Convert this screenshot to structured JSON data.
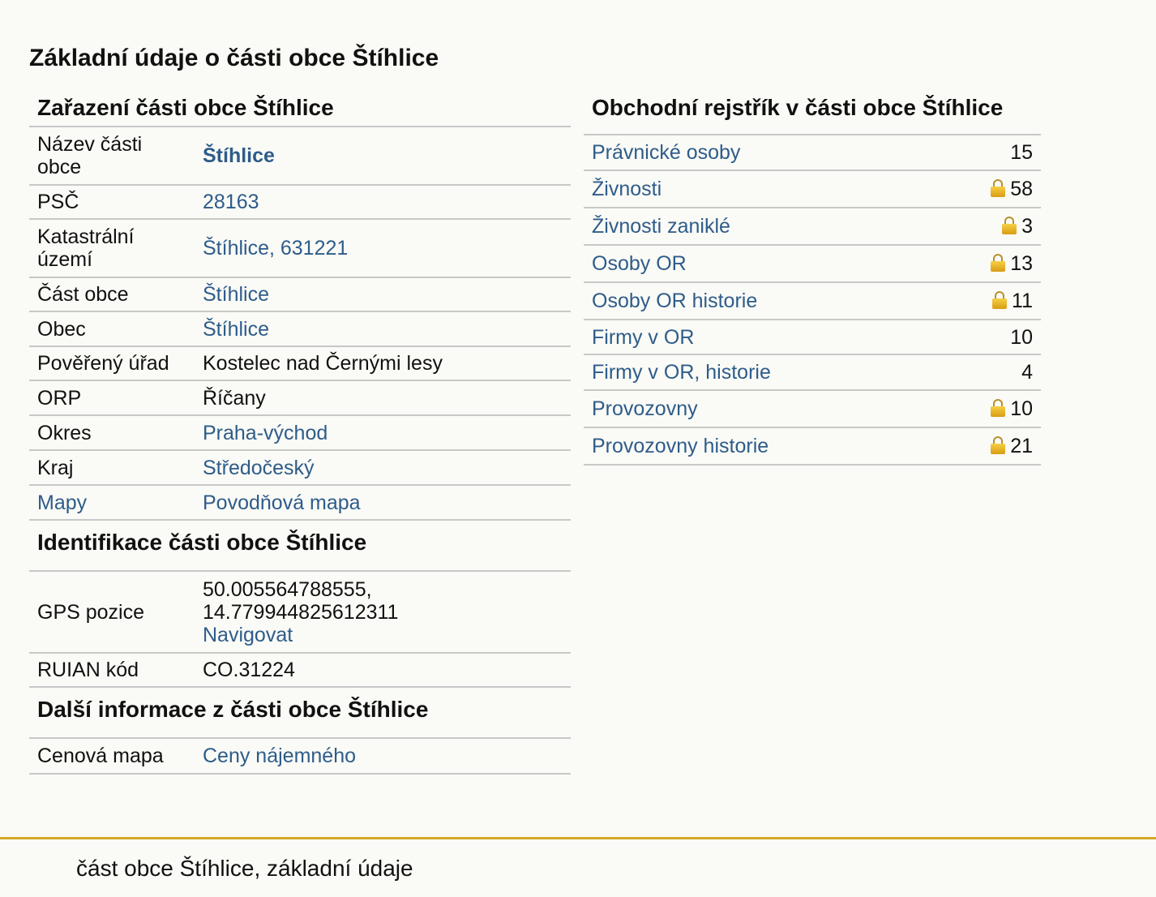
{
  "page_title": "Základní údaje o části obce Štíhlice",
  "zarazeni": {
    "title": "Zařazení části obce Štíhlice",
    "rows": [
      {
        "key": "Název části obce",
        "value": "Štíhlice"
      },
      {
        "key": "PSČ",
        "value": "28163"
      },
      {
        "key": "Katastrální území",
        "value": "Štíhlice, 631221"
      },
      {
        "key": "Část obce",
        "value": "Štíhlice"
      },
      {
        "key": "Obec",
        "value": "Štíhlice"
      },
      {
        "key": "Pověřený úřad",
        "value": "Kostelec nad Černými lesy"
      },
      {
        "key": "ORP",
        "value": "Říčany"
      },
      {
        "key": "Okres",
        "value": "Praha-východ"
      },
      {
        "key": "Kraj",
        "value": "Středočeský"
      },
      {
        "key": "Mapy",
        "value": "Povodňová mapa"
      }
    ]
  },
  "identifikace": {
    "title": "Identifikace části obce Štíhlice",
    "gps_key": "GPS pozice",
    "gps_value": "50.005564788555, 14.779944825612311",
    "gps_link": "Navigovat",
    "ruian_key": "RUIAN kód",
    "ruian_value": "CO.31224"
  },
  "dalsi": {
    "title": "Další informace z části obce Štíhlice",
    "key": "Cenová mapa",
    "value": "Ceny nájemného"
  },
  "rejstrik": {
    "title": "Obchodní rejstřík v části obce Štíhlice",
    "rows": [
      {
        "label": "Právnické osoby",
        "count": "15"
      },
      {
        "label": "Živnosti",
        "count": "58"
      },
      {
        "label": "Živnosti zaniklé",
        "count": "3"
      },
      {
        "label": "Osoby OR",
        "count": "13"
      },
      {
        "label": "Osoby OR historie",
        "count": "11"
      },
      {
        "label": "Firmy v OR",
        "count": "10"
      },
      {
        "label": "Firmy v OR, historie",
        "count": "4"
      },
      {
        "label": "Provozovny",
        "count": "10"
      },
      {
        "label": "Provozovny historie",
        "count": "21"
      }
    ]
  },
  "footer": "část obce Štíhlice, základní údaje"
}
